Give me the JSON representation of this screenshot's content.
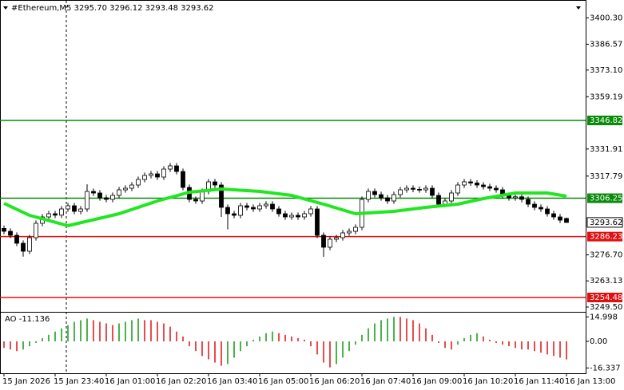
{
  "chart_data": [
    {
      "type": "candlestick",
      "title": "#Ethereum,M5  3295.70 3296.12 3293.48 3293.62",
      "categories": [
        "15 Jan 2026",
        null,
        null,
        null,
        null,
        null,
        null,
        null,
        "15 Jan 23:40",
        null,
        null,
        null,
        null,
        null,
        null,
        null,
        "16 Jan 01:00",
        null,
        null,
        null,
        null,
        null,
        null,
        null,
        "16 Jan 02:20",
        null,
        null,
        null,
        null,
        null,
        null,
        null,
        "16 Jan 03:40",
        null,
        null,
        null,
        null,
        null,
        null,
        null,
        "16 Jan 05:00",
        null,
        null,
        null,
        null,
        null,
        null,
        null,
        "16 Jan 06:20",
        null,
        null,
        null,
        null,
        null,
        null,
        null,
        "16 Jan 07:40",
        null,
        null,
        null,
        null,
        null,
        null,
        null,
        "16 Jan 09:00",
        null,
        null,
        null,
        null,
        null,
        null,
        null,
        "16 Jan 10:20",
        null,
        null,
        null,
        null,
        null,
        null,
        null,
        "16 Jan 11:40",
        null,
        null,
        null,
        null,
        null,
        null,
        null,
        "16 Jan 13:00"
      ],
      "open": [
        3290.5,
        3289.0,
        3286.92,
        3282.76,
        3278.6,
        3285.67,
        3293.16,
        3296.49,
        3298.15,
        3297.4,
        3300.65,
        3302.31,
        3299.4,
        3300.65,
        3309.8,
        3308.97,
        3306.47,
        3305.64,
        3307.72,
        3310.63,
        3311.46,
        3313.13,
        3316.04,
        3318.12,
        3318.95,
        3317.29,
        3321.45,
        3323.11,
        3320.2,
        3311.88,
        3305.64,
        3304.81,
        3309.8,
        3314.79,
        3313.13,
        3301.48,
        3298.15,
        3297.32,
        3302.31,
        3301.48,
        3300.65,
        3302.31,
        3303.14,
        3300.65,
        3298.15,
        3296.49,
        3297.32,
        3296.49,
        3298.15,
        3300.65,
        3286.92,
        3280.68,
        3284.84,
        3285.67,
        3288.17,
        3289.0,
        3291.08,
        3305.64,
        3309.8,
        3308.13,
        3306.47,
        3304.81,
        3308.13,
        3310.63,
        3311.46,
        3310.9,
        3310.63,
        3311.46,
        3307.72,
        3303.14,
        3304.81,
        3308.97,
        3313.13,
        3314.79,
        3314.2,
        3313.13,
        3312.29,
        3311.46,
        3310.63,
        3307.72,
        3306.47,
        3307.0,
        3305.64,
        3303.14,
        3301.48,
        3300.65,
        3298.15,
        3296.49,
        3295.7
      ],
      "high": [
        3292.0,
        3290.5,
        3288.42,
        3284.26,
        3287.17,
        3294.66,
        3297.99,
        3299.65,
        3299.65,
        3302.15,
        3303.81,
        3303.81,
        3302.15,
        3313.5,
        3311.3,
        3310.47,
        3307.97,
        3309.22,
        3312.13,
        3312.96,
        3314.63,
        3317.54,
        3319.62,
        3320.45,
        3320.45,
        3322.95,
        3324.61,
        3324.61,
        3321.7,
        3313.38,
        3307.14,
        3311.3,
        3316.29,
        3316.29,
        3314.63,
        3302.98,
        3299.65,
        3303.81,
        3303.81,
        3302.98,
        3303.81,
        3304.64,
        3304.64,
        3302.15,
        3299.65,
        3298.82,
        3298.82,
        3299.65,
        3302.15,
        3302.15,
        3288.42,
        3286.34,
        3287.17,
        3289.67,
        3290.5,
        3292.58,
        3307.14,
        3311.3,
        3311.3,
        3309.63,
        3307.97,
        3309.63,
        3312.13,
        3312.96,
        3312.96,
        3312.4,
        3312.96,
        3312.96,
        3309.22,
        3306.31,
        3310.47,
        3314.63,
        3316.29,
        3316.29,
        3315.7,
        3314.63,
        3313.79,
        3312.96,
        3312.13,
        3309.22,
        3308.5,
        3308.5,
        3307.14,
        3304.64,
        3302.98,
        3302.15,
        3299.65,
        3297.99,
        3296.12
      ],
      "low": [
        3287.5,
        3285.42,
        3281.26,
        3275.8,
        3277.1,
        3284.17,
        3291.66,
        3294.99,
        3295.9,
        3295.9,
        3299.15,
        3297.9,
        3297.9,
        3299.15,
        3307.47,
        3304.97,
        3304.14,
        3304.14,
        3306.22,
        3309.13,
        3309.96,
        3311.63,
        3314.54,
        3316.62,
        3315.79,
        3315.79,
        3319.95,
        3318.7,
        3310.38,
        3304.14,
        3303.31,
        3303.31,
        3308.3,
        3311.63,
        3296.5,
        3290.0,
        3295.82,
        3295.82,
        3299.98,
        3299.15,
        3299.15,
        3300.81,
        3299.15,
        3296.65,
        3294.99,
        3294.99,
        3294.99,
        3294.99,
        3296.65,
        3285.42,
        3275.7,
        3279.18,
        3283.34,
        3284.17,
        3286.67,
        3287.5,
        3289.58,
        3304.14,
        3306.63,
        3304.97,
        3303.31,
        3303.31,
        3306.63,
        3309.13,
        3309.4,
        3309.13,
        3309.13,
        3306.22,
        3301.64,
        3301.64,
        3303.31,
        3307.47,
        3311.63,
        3312.7,
        3311.63,
        3310.79,
        3309.96,
        3309.13,
        3306.22,
        3304.97,
        3304.97,
        3304.14,
        3301.64,
        3299.98,
        3299.15,
        3296.65,
        3294.99,
        3293.32,
        3293.48
      ],
      "close": [
        3289.0,
        3286.92,
        3282.76,
        3278.6,
        3285.67,
        3293.16,
        3296.49,
        3298.15,
        3297.4,
        3300.65,
        3302.31,
        3299.4,
        3300.65,
        3309.8,
        3308.97,
        3306.47,
        3305.64,
        3307.72,
        3310.63,
        3311.46,
        3313.13,
        3316.04,
        3318.12,
        3318.95,
        3317.29,
        3321.45,
        3323.11,
        3320.2,
        3311.88,
        3305.64,
        3304.81,
        3309.8,
        3314.79,
        3313.13,
        3301.48,
        3298.15,
        3297.32,
        3302.31,
        3301.48,
        3300.65,
        3302.31,
        3303.14,
        3300.65,
        3298.15,
        3296.49,
        3297.32,
        3296.49,
        3298.15,
        3300.65,
        3286.92,
        3280.68,
        3284.84,
        3285.67,
        3288.17,
        3289.0,
        3291.08,
        3305.64,
        3309.8,
        3308.13,
        3306.47,
        3304.81,
        3308.13,
        3310.63,
        3311.46,
        3310.9,
        3310.63,
        3311.46,
        3307.72,
        3303.14,
        3304.81,
        3308.97,
        3313.13,
        3314.79,
        3314.2,
        3313.13,
        3312.29,
        3311.46,
        3310.63,
        3307.72,
        3306.47,
        3307.0,
        3305.64,
        3303.14,
        3301.48,
        3300.65,
        3298.15,
        3296.49,
        3294.82,
        3293.62
      ],
      "up_color": "#ffffff",
      "down_color": "#000000",
      "ylim": [
        3246.99,
        3409.63
      ],
      "yticks": [
        {
          "value": 3400.3,
          "label": "3400.30"
        },
        3386.57,
        {
          "value": 3373.1,
          "label": "3373.10"
        },
        3359.19,
        3331.91,
        3317.79,
        {
          "value": 3276.7,
          "label": "3276.70"
        },
        3263.13,
        {
          "value": 3249.5,
          "label": "3249.50"
        }
      ],
      "ma": {
        "x": [
          0,
          4,
          10,
          18,
          24,
          29,
          34,
          40,
          45,
          50,
          55,
          61,
          66,
          71,
          75,
          80,
          85,
          88
        ],
        "values": [
          3303.56,
          3297.32,
          3291.91,
          3298.15,
          3304.81,
          3309.38,
          3311.05,
          3309.8,
          3307.72,
          3303.14,
          3298.15,
          3299.4,
          3301.48,
          3303.14,
          3306.05,
          3308.97,
          3308.97,
          3307.3
        ],
        "color": "#22e622"
      },
      "levels": [
        {
          "value": 3346.82,
          "color": "#0a8a0a"
        },
        {
          "value": 3306.25,
          "color": "#0a8a0a"
        },
        {
          "value": 3286.23,
          "color": "#e01010"
        },
        {
          "value": 3254.48,
          "color": "#e01010"
        }
      ]
    },
    {
      "type": "bar",
      "title": "AO -11.136",
      "values": [
        -4,
        -5,
        -6,
        -5,
        -3,
        -1,
        2,
        4,
        6,
        8,
        10,
        12,
        13,
        14,
        13,
        12,
        11,
        10,
        11,
        12,
        13,
        14,
        13,
        13,
        12,
        11,
        9,
        6,
        3,
        -3,
        -6,
        -9,
        -11,
        -13,
        -15,
        -14,
        -10,
        -6,
        -3,
        1,
        3,
        5,
        6,
        5,
        4,
        3,
        2,
        1,
        -3,
        -8,
        -13,
        -16,
        -14,
        -10,
        -6,
        -2,
        4,
        8,
        11,
        13,
        14,
        15,
        15,
        14,
        13,
        11,
        8,
        4,
        -1,
        -4,
        -5,
        -2,
        2,
        4,
        5,
        3,
        1,
        -1,
        -2,
        -3,
        -4,
        -5,
        -5,
        -6,
        -7,
        -8,
        -9,
        -10,
        -11.136
      ],
      "up_color": "#119911",
      "down_color": "#e01010",
      "ylim": [
        -19.58,
        17.62
      ],
      "yticks": [
        14.998,
        {
          "value": 0,
          "label": "0.00"
        },
        -16.337
      ]
    }
  ]
}
